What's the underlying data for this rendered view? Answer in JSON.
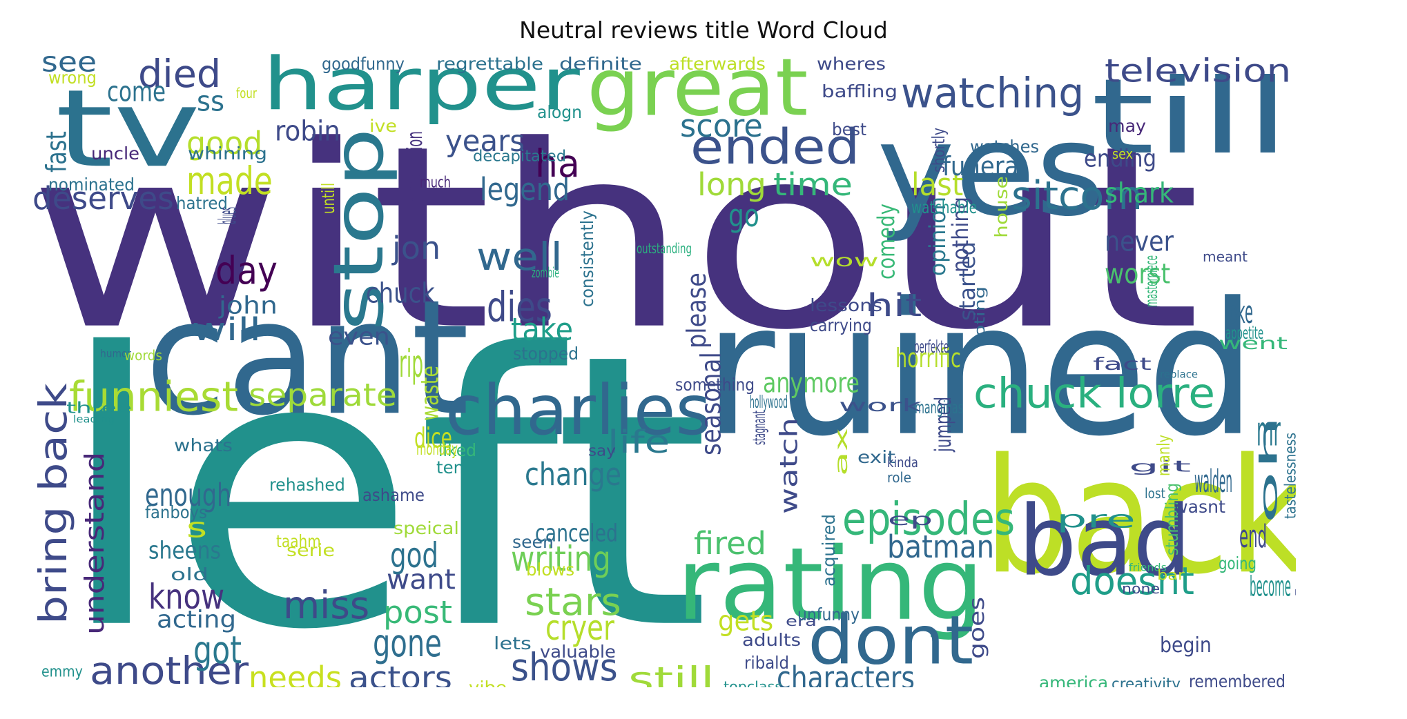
{
  "title": "Neutral reviews title Word Cloud",
  "palette": {
    "dark_purple": "#440154",
    "indigo": "#46327e",
    "blue": "#365c8d",
    "teal_blue": "#277f8e",
    "teal": "#1fa187",
    "green": "#4ac16d",
    "lime": "#a0da39",
    "yellow": "#fde725"
  },
  "words": [
    {
      "t": "without",
      "c": "#46327e"
    },
    {
      "t": "left",
      "c": "#21918c"
    },
    {
      "t": "ruined",
      "c": "#31688e"
    },
    {
      "t": "cant",
      "c": "#31688e"
    },
    {
      "t": "back",
      "c": "#bddf26"
    },
    {
      "t": "yes",
      "c": "#31688e"
    },
    {
      "t": "till",
      "c": "#31688e"
    },
    {
      "t": "tv",
      "c": "#2c728e"
    },
    {
      "t": "harper",
      "c": "#21918c"
    },
    {
      "t": "great",
      "c": "#7ad151"
    },
    {
      "t": "rating",
      "c": "#35b779"
    },
    {
      "t": "bad",
      "c": "#3e4a89"
    },
    {
      "t": "stop",
      "c": "#2a788e"
    },
    {
      "t": "charlies",
      "c": "#31688e"
    },
    {
      "t": "dont",
      "c": "#31688e"
    },
    {
      "t": "ended",
      "c": "#3b528b"
    },
    {
      "t": "watching",
      "c": "#3b528b"
    },
    {
      "t": "television",
      "c": "#3e4a89"
    },
    {
      "t": "chuck lorre",
      "c": "#2ab07f"
    },
    {
      "t": "bring back",
      "c": "#3e4a89"
    },
    {
      "t": "funniest",
      "c": "#a8db34"
    },
    {
      "t": "separate",
      "c": "#9fda3a"
    },
    {
      "t": "episodes",
      "c": "#35b779"
    },
    {
      "t": "sitcom",
      "c": "#2c728e"
    },
    {
      "t": "understand",
      "c": "#482878"
    },
    {
      "t": "another",
      "c": "#3e4a89"
    },
    {
      "t": "shows",
      "c": "#3b528b"
    },
    {
      "t": "characters",
      "c": "#31688e"
    },
    {
      "t": "actors",
      "c": "#3b528b"
    },
    {
      "t": "needs",
      "c": "#c8e020"
    },
    {
      "t": "still",
      "c": "#a0da39"
    },
    {
      "t": "miss",
      "c": "#3e4a89"
    },
    {
      "t": "gone",
      "c": "#2e6e8e"
    },
    {
      "t": "got",
      "c": "#2a788e"
    },
    {
      "t": "writing",
      "c": "#6ece58"
    },
    {
      "t": "stars",
      "c": "#7ad151"
    },
    {
      "t": "doesnt",
      "c": "#1f9e89"
    },
    {
      "t": "batman",
      "c": "#31688e"
    },
    {
      "t": "fired",
      "c": "#4ac16d"
    },
    {
      "t": "cryer",
      "c": "#b5de2b"
    },
    {
      "t": "post",
      "c": "#38b977"
    },
    {
      "t": "want",
      "c": "#3e4a89"
    },
    {
      "t": "god",
      "c": "#2c728e"
    },
    {
      "t": "know",
      "c": "#46327e"
    },
    {
      "t": "enough",
      "c": "#31688e"
    },
    {
      "t": "change",
      "c": "#2a788e"
    },
    {
      "t": "life",
      "c": "#2a788e"
    },
    {
      "t": "watch",
      "c": "#3e4a89"
    },
    {
      "t": "anymore",
      "c": "#5ec962"
    },
    {
      "t": "made",
      "c": "#c2df23"
    },
    {
      "t": "good",
      "c": "#b5de2b"
    },
    {
      "t": "deserves",
      "c": "#3e4a89"
    },
    {
      "t": "legend",
      "c": "#31688e"
    },
    {
      "t": "years",
      "c": "#3b528b"
    },
    {
      "t": "ha",
      "c": "#440154"
    },
    {
      "t": "score",
      "c": "#2c728e"
    },
    {
      "t": "long",
      "c": "#a0da39"
    },
    {
      "t": "time",
      "c": "#35b779"
    },
    {
      "t": "last",
      "c": "#b5de2b"
    },
    {
      "t": "go",
      "c": "#21918c"
    },
    {
      "t": "well",
      "c": "#31688e"
    },
    {
      "t": "dies",
      "c": "#3e4a89"
    },
    {
      "t": "take",
      "c": "#1f9e89"
    },
    {
      "t": "day",
      "c": "#440154"
    },
    {
      "t": "jon",
      "c": "#3b528b"
    },
    {
      "t": "will",
      "c": "#31688e"
    },
    {
      "t": "hit",
      "c": "#3e4a89"
    },
    {
      "t": "died",
      "c": "#3e4a89"
    },
    {
      "t": "come",
      "c": "#2c728e"
    },
    {
      "t": "see",
      "c": "#31688e"
    },
    {
      "t": "ss",
      "c": "#2c728e"
    },
    {
      "t": "s",
      "c": "#c2df23"
    },
    {
      "t": "robin",
      "c": "#3e4a89"
    },
    {
      "t": "funeral",
      "c": "#31688e"
    },
    {
      "t": "ending",
      "c": "#3e4a89"
    },
    {
      "t": "shark",
      "c": "#35b779"
    },
    {
      "t": "never",
      "c": "#3b528b"
    },
    {
      "t": "worst",
      "c": "#4ac16d"
    },
    {
      "t": "joke",
      "c": "#31688e"
    },
    {
      "t": "mr",
      "c": "#2a788e"
    },
    {
      "t": "walden",
      "c": "#31688e"
    },
    {
      "t": "oh",
      "c": "#2c728e"
    },
    {
      "t": "end",
      "c": "#3e4a89"
    },
    {
      "t": "become",
      "c": "#21918c"
    },
    {
      "t": "pre",
      "c": "#21918c"
    },
    {
      "t": "jumped",
      "c": "#3e4a89"
    },
    {
      "t": "started",
      "c": "#3b528b"
    },
    {
      "t": "nothing",
      "c": "#3e4a89"
    },
    {
      "t": "opinion",
      "c": "#2a788e"
    },
    {
      "t": "comedy",
      "c": "#38b977"
    },
    {
      "t": "horrific",
      "c": "#b5de2b"
    },
    {
      "t": "please",
      "c": "#3e4a89"
    },
    {
      "t": "seasonal",
      "c": "#3e4a89"
    },
    {
      "t": "waste",
      "c": "#a8db34"
    },
    {
      "t": "rip",
      "c": "#a0da39"
    },
    {
      "t": "chuck",
      "c": "#3b528b"
    },
    {
      "t": "john",
      "c": "#31688e"
    },
    {
      "t": "even",
      "c": "#3b528b"
    },
    {
      "t": "acting",
      "c": "#31688e"
    },
    {
      "t": "sheens",
      "c": "#2a788e"
    },
    {
      "t": "canceled",
      "c": "#2c728e"
    },
    {
      "t": "dice",
      "c": "#c2df23"
    },
    {
      "t": "liked",
      "c": "#35b779"
    },
    {
      "t": "ten",
      "c": "#21918c"
    },
    {
      "t": "gets",
      "c": "#c2df23"
    },
    {
      "t": "goes",
      "c": "#3e4a89"
    },
    {
      "t": "uncle",
      "c": "#482878"
    },
    {
      "t": "whining",
      "c": "#2c728e"
    },
    {
      "t": "nominated",
      "c": "#2c728e"
    },
    {
      "t": "hatred",
      "c": "#2c728e"
    },
    {
      "t": "blues",
      "c": "#3e4a89"
    },
    {
      "t": "fast",
      "c": "#2c728e"
    },
    {
      "t": "wrong",
      "c": "#c2df23"
    },
    {
      "t": "four",
      "c": "#c2df23"
    },
    {
      "t": "goodfunny",
      "c": "#31688e"
    },
    {
      "t": "regrettable",
      "c": "#2c728e"
    },
    {
      "t": "definite",
      "c": "#31688e"
    },
    {
      "t": "afterwards",
      "c": "#bddf26"
    },
    {
      "t": "wheres",
      "c": "#3e4a89"
    },
    {
      "t": "baffling",
      "c": "#3e4a89"
    },
    {
      "t": "may",
      "c": "#482878"
    },
    {
      "t": "alogn",
      "c": "#21918c"
    },
    {
      "t": "ive",
      "c": "#c2df23"
    },
    {
      "t": "best",
      "c": "#3e4a89"
    },
    {
      "t": "introduction",
      "c": "#46327e"
    },
    {
      "t": "decapitated",
      "c": "#2a788e"
    },
    {
      "t": "much",
      "c": "#482878"
    },
    {
      "t": "untill",
      "c": "#c2df23"
    },
    {
      "t": "watches",
      "c": "#31688e"
    },
    {
      "t": "shortly",
      "c": "#3e4a89"
    },
    {
      "t": "sex",
      "c": "#c2df23"
    },
    {
      "t": "watchable",
      "c": "#21918c"
    },
    {
      "t": "house",
      "c": "#a0da39"
    },
    {
      "t": "consistently",
      "c": "#2c728e"
    },
    {
      "t": "outstanding",
      "c": "#2ab07f"
    },
    {
      "t": "zombie",
      "c": "#2ab07f"
    },
    {
      "t": "wow",
      "c": "#b5de2b"
    },
    {
      "t": "lessons",
      "c": "#3e4a89"
    },
    {
      "t": "carrying",
      "c": "#3e4a89"
    },
    {
      "t": "voting",
      "c": "#31688e"
    },
    {
      "t": "masterpiece",
      "c": "#35b779"
    },
    {
      "t": "meant",
      "c": "#3e4a89"
    },
    {
      "t": "appetite",
      "c": "#21918c"
    },
    {
      "t": "went",
      "c": "#35b779"
    },
    {
      "t": "perfekte",
      "c": "#3e4a89"
    },
    {
      "t": "fact",
      "c": "#3e4a89"
    },
    {
      "t": "replace",
      "c": "#2c728e"
    },
    {
      "t": "humor",
      "c": "#31688e"
    },
    {
      "t": "words",
      "c": "#a0da39"
    },
    {
      "t": "stopped",
      "c": "#2c728e"
    },
    {
      "t": "something",
      "c": "#3e4a89"
    },
    {
      "t": "hollywood",
      "c": "#2c728e"
    },
    {
      "t": "work",
      "c": "#3b528b"
    },
    {
      "t": "manginas",
      "c": "#2c728e"
    },
    {
      "t": "three",
      "c": "#21918c"
    },
    {
      "t": "leading",
      "c": "#21918c"
    },
    {
      "t": "whats",
      "c": "#2c728e"
    },
    {
      "t": "monday",
      "c": "#c2df23"
    },
    {
      "t": "say",
      "c": "#3e4a89"
    },
    {
      "t": "stagnant",
      "c": "#3e4a89"
    },
    {
      "t": "ax",
      "c": "#b5de2b"
    },
    {
      "t": "exit",
      "c": "#31688e"
    },
    {
      "t": "kinda",
      "c": "#3e4a89"
    },
    {
      "t": "role",
      "c": "#31688e"
    },
    {
      "t": "ep",
      "c": "#3e4a89"
    },
    {
      "t": "git",
      "c": "#3e4a89"
    },
    {
      "t": "lost",
      "c": "#2c728e"
    },
    {
      "t": "manly",
      "c": "#bddf26"
    },
    {
      "t": "tastelessness",
      "c": "#2c728e"
    },
    {
      "t": "stumbling",
      "c": "#4ac16d"
    },
    {
      "t": "wasnt",
      "c": "#3e4a89"
    },
    {
      "t": "going",
      "c": "#35b779"
    },
    {
      "t": "mixed",
      "c": "#3e4a89"
    },
    {
      "t": "friends",
      "c": "#35b779"
    },
    {
      "t": "bar",
      "c": "#c2df23"
    },
    {
      "t": "none",
      "c": "#3e4a89"
    },
    {
      "t": "rehashed",
      "c": "#21918c"
    },
    {
      "t": "ashame",
      "c": "#3e4a89"
    },
    {
      "t": "fanboys",
      "c": "#2c728e"
    },
    {
      "t": "speical",
      "c": "#a0da39"
    },
    {
      "t": "taahm",
      "c": "#c2df23"
    },
    {
      "t": "serie",
      "c": "#c2df23"
    },
    {
      "t": "seen",
      "c": "#31688e"
    },
    {
      "t": "old",
      "c": "#2c728e"
    },
    {
      "t": "blows",
      "c": "#c2df23"
    },
    {
      "t": "acquired",
      "c": "#2c728e"
    },
    {
      "t": "era",
      "c": "#3e4a89"
    },
    {
      "t": "unfunny",
      "c": "#31688e"
    },
    {
      "t": "adults",
      "c": "#3e4a89"
    },
    {
      "t": "lets",
      "c": "#2c728e"
    },
    {
      "t": "valuable",
      "c": "#3e4a89"
    },
    {
      "t": "ribald",
      "c": "#3e4a89"
    },
    {
      "t": "topclass",
      "c": "#21918c"
    },
    {
      "t": "vibe",
      "c": "#c2df23"
    },
    {
      "t": "emmy",
      "c": "#21918c"
    },
    {
      "t": "begin",
      "c": "#3e4a89"
    },
    {
      "t": "america",
      "c": "#35b779"
    },
    {
      "t": "creativity",
      "c": "#2c728e"
    },
    {
      "t": "remembered",
      "c": "#3e4a89"
    }
  ]
}
